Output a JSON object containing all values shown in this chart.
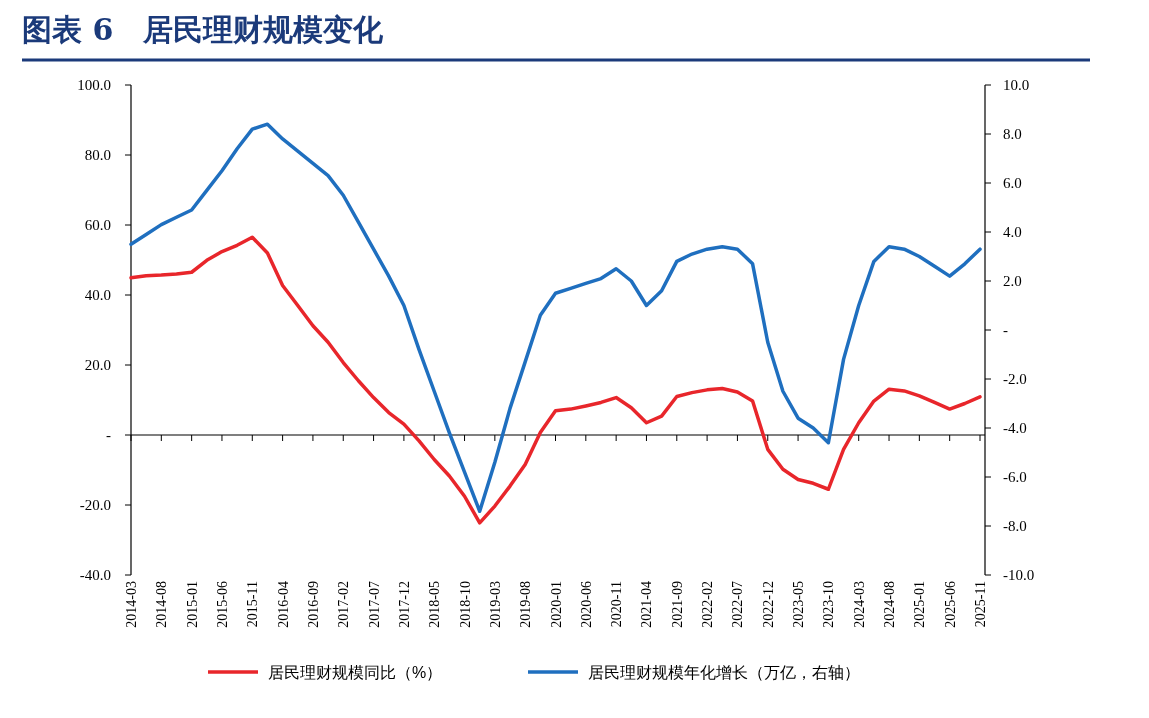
{
  "chart_data": {
    "type": "line",
    "title": "图表 6　居民理财规模变化",
    "categories": [
      "2014-03",
      null,
      "2014-08",
      null,
      "2015-01",
      null,
      "2015-06",
      null,
      "2015-11",
      null,
      "2016-04",
      null,
      "2016-09",
      null,
      "2017-02",
      null,
      "2017-07",
      null,
      "2017-12",
      null,
      "2018-05",
      null,
      "2018-10",
      null,
      "2019-03",
      null,
      "2019-08",
      null,
      "2020-01",
      null,
      "2020-06",
      null,
      "2020-11",
      null,
      "2021-04",
      null,
      "2021-09",
      null,
      "2022-02",
      null,
      "2022-07",
      null,
      "2022-12",
      null,
      "2023-05",
      null,
      "2023-10",
      null,
      "2024-03",
      null,
      "2024-08",
      null,
      "2025-01",
      null,
      "2025-06",
      null,
      "2025-11"
    ],
    "series": [
      {
        "name": "居民理财规模同比（%）",
        "color": "#e8262b",
        "values": [
          44.9,
          45.5,
          45.7,
          46.0,
          46.5,
          49.9,
          52.4,
          54.2,
          56.5,
          52.0,
          42.7,
          37.0,
          31.2,
          26.5,
          20.7,
          15.5,
          10.7,
          6.4,
          3.1,
          -1.7,
          -7.0,
          -11.7,
          -17.5,
          -25.1,
          -20.3,
          -14.6,
          -8.4,
          0.7,
          6.9,
          7.4,
          8.3,
          9.3,
          10.7,
          7.8,
          3.5,
          5.4,
          11.0,
          12.1,
          12.9,
          13.3,
          12.3,
          9.7,
          -4.1,
          -9.8,
          -12.7,
          -13.8,
          -15.5,
          -4.1,
          3.5,
          9.7,
          13.1,
          12.6,
          11.2,
          9.3,
          7.4,
          9.0,
          10.9
        ]
      },
      {
        "name": "居民理财规模年化增长（万亿，右轴）",
        "color": "#1f6fbf",
        "axis": "y2",
        "values": [
          3.5,
          3.9,
          4.3,
          4.6,
          4.9,
          5.7,
          6.5,
          7.4,
          8.2,
          8.4,
          7.8,
          7.3,
          6.8,
          6.3,
          5.5,
          4.4,
          3.3,
          2.2,
          1.0,
          -0.8,
          -2.5,
          -4.2,
          -5.8,
          -7.4,
          -5.4,
          -3.2,
          -1.3,
          0.6,
          1.5,
          1.7,
          1.9,
          2.1,
          2.5,
          2.0,
          1.0,
          1.6,
          2.8,
          3.1,
          3.3,
          3.4,
          3.3,
          2.7,
          -0.5,
          -2.5,
          -3.6,
          -4.0,
          -4.6,
          -1.2,
          1.0,
          2.8,
          3.4,
          3.3,
          3.0,
          2.6,
          2.2,
          2.7,
          3.3
        ]
      }
    ],
    "ylim": [
      -40,
      100
    ],
    "yticks": [
      {
        "value": -40,
        "label": "-40.0"
      },
      {
        "value": -20,
        "label": "-20.0"
      },
      {
        "value": 0,
        "label": "-"
      },
      {
        "value": 20,
        "label": "20.0"
      },
      {
        "value": 40,
        "label": "40.0"
      },
      {
        "value": 60,
        "label": "60.0"
      },
      {
        "value": 80,
        "label": "80.0"
      },
      {
        "value": 100,
        "label": "100.0"
      }
    ],
    "y2lim": [
      -10,
      10
    ],
    "y2ticks": [
      {
        "value": -10,
        "label": "-10.0"
      },
      {
        "value": -8,
        "label": "-8.0"
      },
      {
        "value": -6,
        "label": "-6.0"
      },
      {
        "value": -4,
        "label": "-4.0"
      },
      {
        "value": -2,
        "label": "-2.0"
      },
      {
        "value": 0,
        "label": "-"
      },
      {
        "value": 2,
        "label": "2.0"
      },
      {
        "value": 4,
        "label": "4.0"
      },
      {
        "value": 6,
        "label": "6.0"
      },
      {
        "value": 8,
        "label": "8.0"
      },
      {
        "value": 10,
        "label": "10.0"
      }
    ],
    "legend": "bottom"
  }
}
